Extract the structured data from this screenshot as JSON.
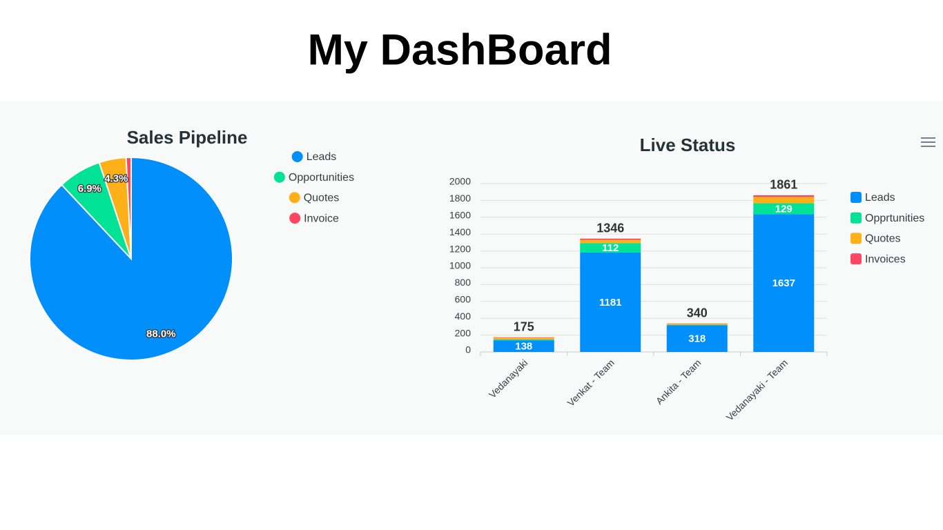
{
  "header": {
    "title": "My DashBoard"
  },
  "chart_data": [
    {
      "type": "pie",
      "title": "Sales Pipeline",
      "categories": [
        "Leads",
        "Opportunities",
        "Quotes",
        "Invoice"
      ],
      "values": [
        88.0,
        6.9,
        4.3,
        0.8
      ],
      "value_labels": [
        "88.0%",
        "6.9%",
        "4.3%",
        null
      ],
      "colors": [
        "#008ffb",
        "#00e396",
        "#feb019",
        "#ff4560"
      ]
    },
    {
      "type": "bar",
      "stacked": true,
      "title": "Live Status",
      "categories": [
        "Vedanayaki",
        "Venkat - Team",
        "Ankita - Team",
        "Vedanayaki - Team"
      ],
      "series": [
        {
          "name": "Leads",
          "color": "#008ffb",
          "values": [
            138,
            1181,
            318,
            1637
          ]
        },
        {
          "name": "Opprtunities",
          "color": "#00e396",
          "values": [
            10,
            112,
            5,
            129
          ]
        },
        {
          "name": "Quotes",
          "color": "#feb019",
          "values": [
            22,
            38,
            15,
            75
          ]
        },
        {
          "name": "Invoices",
          "color": "#ff4560",
          "values": [
            5,
            15,
            2,
            20
          ]
        }
      ],
      "totals": [
        175,
        1346,
        340,
        1861
      ],
      "ylim": [
        0,
        2000
      ],
      "yticks": [
        0,
        200,
        400,
        600,
        800,
        1000,
        1200,
        1400,
        1600,
        1800,
        2000
      ],
      "grid": true
    }
  ]
}
